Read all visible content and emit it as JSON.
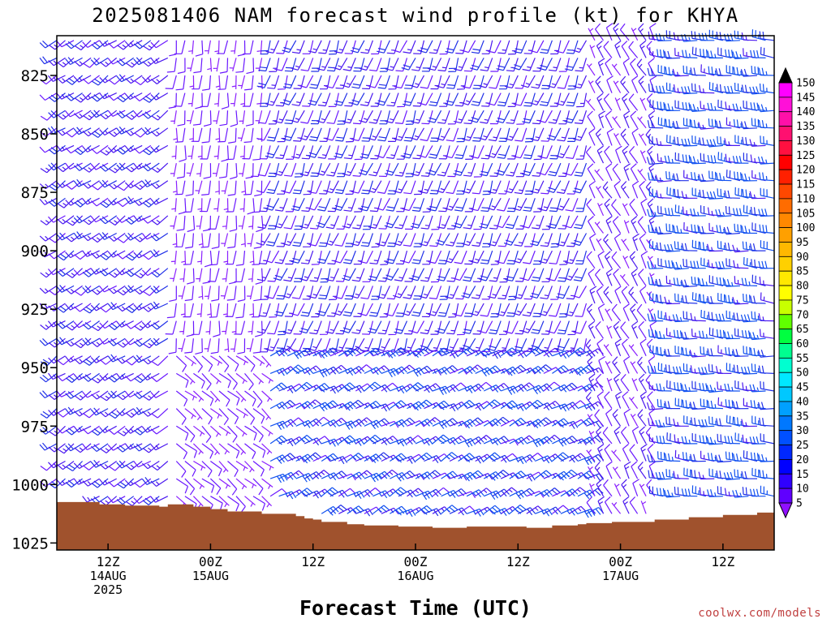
{
  "chart_data": {
    "type": "wind_barb_time_height",
    "title": "2025081406 NAM forecast wind profile (kt) for KHYA",
    "xlabel": "Forecast Time (UTC)",
    "ylabel": "",
    "credit": "coolwx.com/models",
    "y_axis": {
      "unit": "hPa",
      "range": [
        808,
        1028
      ],
      "ticks": [
        "825",
        "850",
        "875",
        "900",
        "925",
        "950",
        "975",
        "1000",
        "1025"
      ],
      "tick_values": [
        825,
        850,
        875,
        900,
        925,
        950,
        975,
        1000,
        1025
      ]
    },
    "x_axis": {
      "range_hours": [
        0,
        84
      ],
      "ticks": [
        {
          "hour": 6,
          "labels": [
            "12Z",
            "14AUG",
            "2025"
          ]
        },
        {
          "hour": 18,
          "labels": [
            "00Z",
            "15AUG"
          ]
        },
        {
          "hour": 30,
          "labels": [
            "12Z"
          ]
        },
        {
          "hour": 42,
          "labels": [
            "00Z",
            "16AUG"
          ]
        },
        {
          "hour": 54,
          "labels": [
            "12Z"
          ]
        },
        {
          "hour": 66,
          "labels": [
            "00Z",
            "17AUG"
          ]
        },
        {
          "hour": 78,
          "labels": [
            "12Z"
          ]
        }
      ]
    },
    "colorbar": {
      "unit": "kt",
      "labels": [
        "150",
        "145",
        "140",
        "135",
        "130",
        "125",
        "120",
        "115",
        "110",
        "105",
        "100",
        "95",
        "90",
        "85",
        "80",
        "75",
        "70",
        "65",
        "60",
        "55",
        "50",
        "45",
        "40",
        "35",
        "30",
        "25",
        "20",
        "15",
        "10",
        "5"
      ],
      "colors": [
        "#ff00ff",
        "#ff10d8",
        "#ff10a8",
        "#ff1070",
        "#ff1040",
        "#ff0000",
        "#ff2000",
        "#ff4800",
        "#ff6c00",
        "#ff8800",
        "#ffa000",
        "#ffb800",
        "#ffd000",
        "#ffe800",
        "#ffff00",
        "#c8ff00",
        "#60ff00",
        "#00ff40",
        "#00ff90",
        "#00ffd0",
        "#00e8ff",
        "#00c8ff",
        "#00a0ff",
        "#0078ff",
        "#0050ff",
        "#0028ff",
        "#0000ff",
        "#3000ff",
        "#6000ff",
        "#9010ff"
      ]
    },
    "terrain_pressure_hPa": [
      {
        "hour": 0,
        "p": 1007.5
      },
      {
        "hour": 4,
        "p": 1007.5
      },
      {
        "hour": 5,
        "p": 1008.5
      },
      {
        "hour": 8,
        "p": 1009.0
      },
      {
        "hour": 12,
        "p": 1009.5
      },
      {
        "hour": 13,
        "p": 1008.5
      },
      {
        "hour": 16,
        "p": 1009.5
      },
      {
        "hour": 18,
        "p": 1010.5
      },
      {
        "hour": 20,
        "p": 1011.5
      },
      {
        "hour": 24,
        "p": 1012.5
      },
      {
        "hour": 28,
        "p": 1013.5
      },
      {
        "hour": 29,
        "p": 1014.5
      },
      {
        "hour": 30,
        "p": 1015.0
      },
      {
        "hour": 31,
        "p": 1016.0
      },
      {
        "hour": 34,
        "p": 1017.0
      },
      {
        "hour": 36,
        "p": 1017.5
      },
      {
        "hour": 40,
        "p": 1018.0
      },
      {
        "hour": 42,
        "p": 1018.0
      },
      {
        "hour": 44,
        "p": 1018.5
      },
      {
        "hour": 48,
        "p": 1018.0
      },
      {
        "hour": 52,
        "p": 1018.0
      },
      {
        "hour": 55,
        "p": 1018.5
      },
      {
        "hour": 58,
        "p": 1017.5
      },
      {
        "hour": 61,
        "p": 1017.0
      },
      {
        "hour": 62,
        "p": 1016.5
      },
      {
        "hour": 65,
        "p": 1016.0
      },
      {
        "hour": 70,
        "p": 1015.0
      },
      {
        "hour": 74,
        "p": 1014.0
      },
      {
        "hour": 78,
        "p": 1013.0
      },
      {
        "hour": 82,
        "p": 1012.0
      },
      {
        "hour": 84,
        "p": 1011.5
      }
    ],
    "barb_grid": {
      "hours_from": 0,
      "hours_to": 84,
      "hour_step": 1,
      "levels_from": 810,
      "levels_to": 1020,
      "level_step": 7.5
    },
    "wind_regimes": [
      {
        "hours": [
          0,
          13
        ],
        "levels": "all",
        "dir_deg": 235,
        "speed_kt": [
          10,
          20
        ]
      },
      {
        "hours": [
          14,
          24
        ],
        "levels": "upper",
        "dir_deg": 185,
        "speed_kt": [
          5,
          10
        ]
      },
      {
        "hours": [
          14,
          24
        ],
        "levels": "lower",
        "dir_deg": 130,
        "speed_kt": [
          5,
          10
        ]
      },
      {
        "hours": [
          25,
          62
        ],
        "levels": "upper",
        "dir_deg": 200,
        "speed_kt": [
          10,
          20
        ]
      },
      {
        "hours": [
          25,
          62
        ],
        "levels": "lower",
        "dir_deg": 60,
        "speed_kt": [
          10,
          30
        ]
      },
      {
        "hours": [
          63,
          70
        ],
        "levels": "all",
        "dir_deg": 330,
        "speed_kt": [
          5,
          15
        ]
      },
      {
        "hours": [
          71,
          84
        ],
        "levels": "all",
        "dir_deg": 275,
        "speed_kt": [
          15,
          30
        ]
      }
    ]
  }
}
